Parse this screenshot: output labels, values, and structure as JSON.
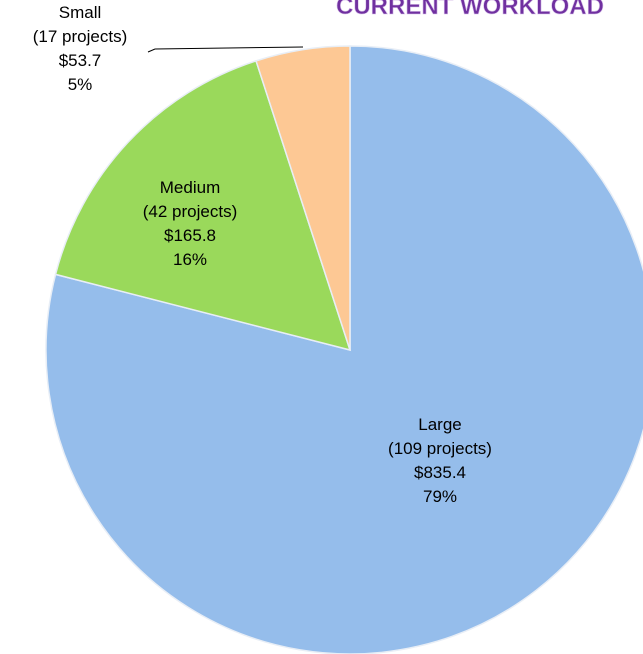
{
  "chart_data": {
    "type": "pie",
    "title": "CURRENT WORKLOAD",
    "categories": [
      "Large",
      "Medium",
      "Small"
    ],
    "project_counts": [
      "(109 projects)",
      "(42 projects)",
      "(17 projects)"
    ],
    "amounts": [
      "$835.4",
      "$165.8",
      "$53.7"
    ],
    "values": [
      79,
      16,
      5
    ],
    "value_labels": [
      "79%",
      "16%",
      "5%"
    ],
    "colors": [
      "#95bdeb",
      "#9ad95b",
      "#fdc894"
    ]
  }
}
